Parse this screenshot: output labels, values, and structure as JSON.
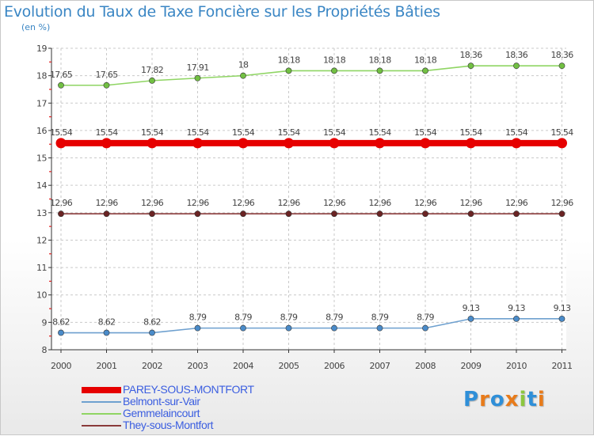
{
  "title": "Evolution du Taux de Taxe Foncière sur les Propriétés Bâties",
  "subtitle": "(en %)",
  "chart_data": {
    "type": "line",
    "title": "Evolution du Taux de Taxe Foncière sur les Propriétés Bâties",
    "ylabel": "(en %)",
    "xlabel": "",
    "x": [
      "2000",
      "2001",
      "2002",
      "2003",
      "2004",
      "2005",
      "2006",
      "2007",
      "2008",
      "2009",
      "2010",
      "2011"
    ],
    "ylim": [
      8,
      19
    ],
    "yticks": [
      8,
      9,
      10,
      11,
      12,
      13,
      14,
      15,
      16,
      17,
      18,
      19
    ],
    "grid": true,
    "series": [
      {
        "name": "Gemmelaincourt",
        "color": "#8fd563",
        "point_color": "#72c043",
        "values": [
          17.65,
          17.65,
          17.82,
          17.91,
          18,
          18.18,
          18.18,
          18.18,
          18.18,
          18.36,
          18.36,
          18.36
        ],
        "labels": [
          "17.65",
          "17.65",
          "17.82",
          "17.91",
          "18",
          "18.18",
          "18.18",
          "18.18",
          "18.18",
          "18.36",
          "18.36",
          "18.36"
        ]
      },
      {
        "name": "PAREY-SOUS-MONTFORT",
        "color": "#e60000",
        "point_color": "#e60000",
        "values": [
          15.54,
          15.54,
          15.54,
          15.54,
          15.54,
          15.54,
          15.54,
          15.54,
          15.54,
          15.54,
          15.54,
          15.54
        ],
        "labels": [
          "15.54",
          "15.54",
          "15.54",
          "15.54",
          "15.54",
          "15.54",
          "15.54",
          "15.54",
          "15.54",
          "15.54",
          "15.54",
          "15.54"
        ]
      },
      {
        "name": "They-sous-Montfort",
        "color": "#8a3a3a",
        "point_color": "#6b2424",
        "values": [
          12.96,
          12.96,
          12.96,
          12.96,
          12.96,
          12.96,
          12.96,
          12.96,
          12.96,
          12.96,
          12.96,
          12.96
        ],
        "labels": [
          "12.96",
          "12.96",
          "12.96",
          "12.96",
          "12.96",
          "12.96",
          "12.96",
          "12.96",
          "12.96",
          "12.96",
          "12.96",
          "12.96"
        ]
      },
      {
        "name": "Belmont-sur-Vair",
        "color": "#6ea0cf",
        "point_color": "#4a8bc9",
        "values": [
          8.62,
          8.62,
          8.62,
          8.79,
          8.79,
          8.79,
          8.79,
          8.79,
          8.79,
          9.13,
          9.13,
          9.13
        ],
        "labels": [
          "8.62",
          "8.62",
          "8.62",
          "8.79",
          "8.79",
          "8.79",
          "8.79",
          "8.79",
          "8.79",
          "9.13",
          "9.13",
          "9.13"
        ]
      }
    ]
  },
  "legend": {
    "placement": "bottom-left",
    "items": [
      {
        "label": "PAREY-SOUS-MONTFORT",
        "color": "#e60000",
        "bold": true
      },
      {
        "label": "Belmont-sur-Vair",
        "color": "#6ea0cf",
        "bold": false
      },
      {
        "label": "Gemmelaincourt",
        "color": "#8fd563",
        "bold": false
      },
      {
        "label": "They-sous-Montfort",
        "color": "#8a3a3a",
        "bold": false
      }
    ]
  },
  "logo": {
    "text": "Proxiti",
    "letter_colors": [
      "#2f8fd8",
      "#e87b1a",
      "#2f8fd8",
      "#e87b1a",
      "#8cc63f",
      "#2f8fd8",
      "#e87b1a"
    ]
  }
}
